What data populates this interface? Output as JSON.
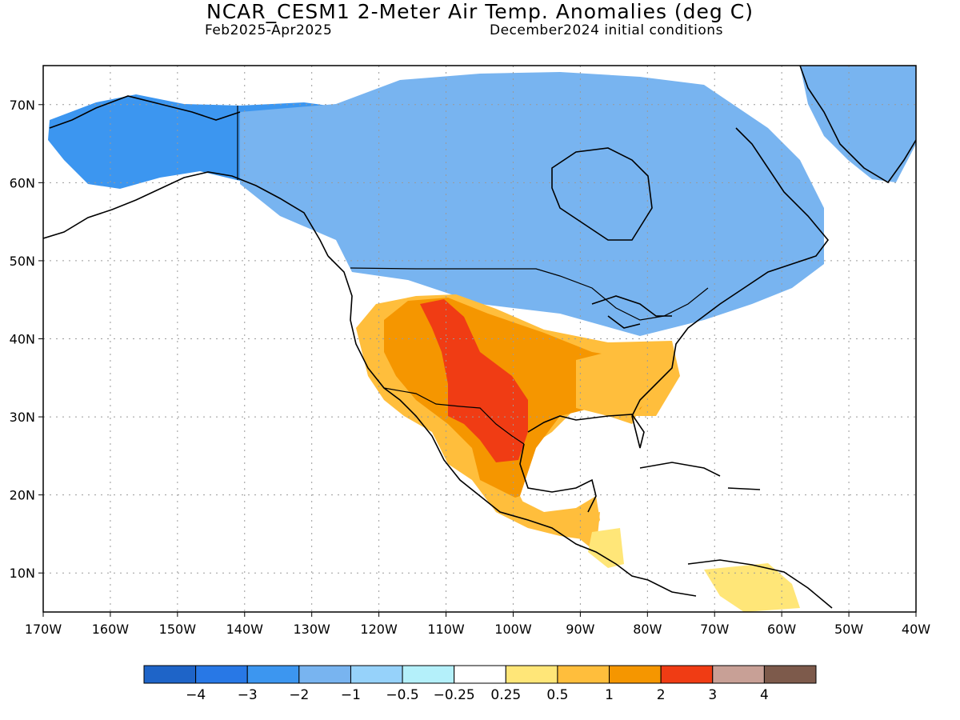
{
  "title": "NCAR_CESM1 2-Meter Air Temp. Anomalies (deg C)",
  "subtitle_left": "Feb2025-Apr2025",
  "subtitle_right": "December2024 initial conditions",
  "map": {
    "lon_range": [
      -170,
      -40
    ],
    "lat_range": [
      5,
      75
    ],
    "lon_ticks": [
      "170W",
      "160W",
      "150W",
      "140W",
      "130W",
      "120W",
      "110W",
      "100W",
      "90W",
      "80W",
      "70W",
      "60W",
      "50W",
      "40W"
    ],
    "lat_ticks": [
      "10N",
      "20N",
      "30N",
      "40N",
      "50N",
      "60N",
      "70N"
    ],
    "grid": true,
    "land_outline_color": "#000000"
  },
  "colorbar": {
    "colors": [
      "#1e64c8",
      "#2878e6",
      "#3c96f0",
      "#78b4f0",
      "#96d2fa",
      "#b4f0fa",
      "#ffffff",
      "#ffe678",
      "#ffbe3c",
      "#f59600",
      "#f03c14",
      "#c8a096",
      "#7d5a4b"
    ],
    "labels": [
      "−4",
      "−3",
      "−2",
      "−1",
      "−0.5",
      "−0.25",
      "0.25",
      "0.5",
      "1",
      "2",
      "3",
      "4"
    ]
  },
  "anomaly_regions": [
    {
      "name": "alaska-yukon-cold",
      "value": -2,
      "color": "#3c96f0"
    },
    {
      "name": "canada-cold",
      "value": -1,
      "color": "#78b4f0"
    },
    {
      "name": "greenland-cold",
      "value": -1,
      "color": "#78b4f0"
    },
    {
      "name": "us-southwest-warm",
      "value": 1,
      "color": "#ffbe3c"
    },
    {
      "name": "us-interior-warm",
      "value": 2,
      "color": "#f59600"
    },
    {
      "name": "rockies-texas-warm",
      "value": 3,
      "color": "#f03c14"
    },
    {
      "name": "mexico-warm",
      "value": 1,
      "color": "#ffbe3c"
    },
    {
      "name": "southeast-us-warm",
      "value": 1,
      "color": "#ffbe3c"
    }
  ]
}
